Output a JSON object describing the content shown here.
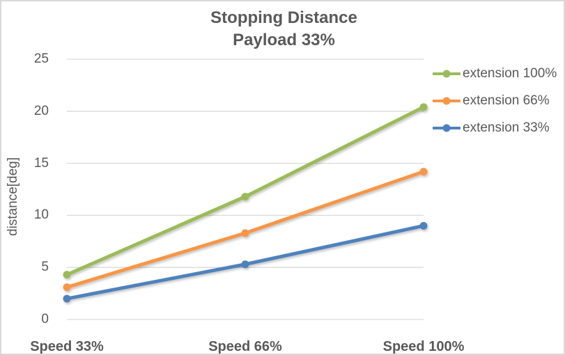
{
  "title": {
    "line1": "Stopping Distance",
    "line2": "Payload 33%"
  },
  "axes": {
    "y_label": "distance[deg]",
    "y_ticks": [
      0,
      5,
      10,
      15,
      20,
      25
    ],
    "x_categories": [
      "Speed 33%",
      "Speed 66%",
      "Speed 100%"
    ]
  },
  "legend": {
    "items": [
      {
        "label": "extension 100%",
        "color": "#9BBB59"
      },
      {
        "label": "extension 66%",
        "color": "#F79646"
      },
      {
        "label": "extension 33%",
        "color": "#4F81BD"
      }
    ]
  },
  "chart_data": {
    "type": "line",
    "title": "Stopping Distance Payload 33%",
    "xlabel": "",
    "ylabel": "distance[deg]",
    "ylim": [
      0,
      25
    ],
    "ytick_step": 5,
    "grid": true,
    "legend_position": "right",
    "categories": [
      "Speed 33%",
      "Speed 66%",
      "Speed 100%"
    ],
    "series": [
      {
        "name": "extension 100%",
        "color": "#9BBB59",
        "values": [
          4.3,
          11.8,
          20.4
        ]
      },
      {
        "name": "extension 66%",
        "color": "#F79646",
        "values": [
          3.1,
          8.3,
          14.2
        ]
      },
      {
        "name": "extension 33%",
        "color": "#4F81BD",
        "values": [
          2.0,
          5.3,
          9.0
        ]
      }
    ]
  },
  "colors": {
    "text": "#595959",
    "gridline": "#D9D9D9",
    "border": "#D9D9D9",
    "background": "#FFFFFF"
  }
}
